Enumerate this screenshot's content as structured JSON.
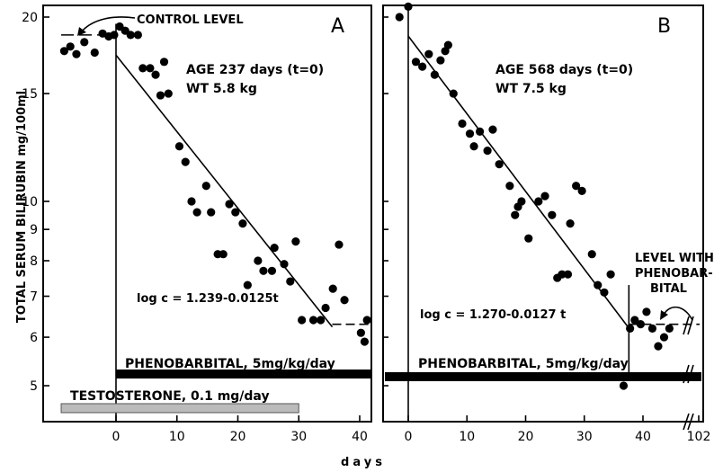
{
  "chart_data": [
    {
      "panel": "A",
      "type": "scatter",
      "ylabel": "TOTAL SERUM BILIRUBIN mg/100ml",
      "xlabel": "days",
      "y_scale": "log",
      "xlim": [
        -9,
        42
      ],
      "ylim": [
        4.5,
        20
      ],
      "x_ticks": [
        0,
        10,
        20,
        30,
        40
      ],
      "y_ticks": [
        5,
        6,
        7,
        8,
        9,
        10,
        15,
        20
      ],
      "points": [
        [
          -8.5,
          17.6
        ],
        [
          -7.5,
          17.9
        ],
        [
          -6.5,
          17.4
        ],
        [
          -5.2,
          18.2
        ],
        [
          -3.5,
          17.5
        ],
        [
          -2.2,
          18.8
        ],
        [
          -1.2,
          18.6
        ],
        [
          -0.3,
          18.7
        ],
        [
          0.6,
          19.3
        ],
        [
          1.5,
          19.0
        ],
        [
          2.4,
          18.7
        ],
        [
          3.6,
          18.7
        ],
        [
          4.4,
          16.5
        ],
        [
          5.6,
          16.5
        ],
        [
          6.5,
          16.1
        ],
        [
          7.3,
          14.9
        ],
        [
          7.9,
          16.9
        ],
        [
          8.6,
          15.0
        ],
        [
          10.4,
          12.3
        ],
        [
          11.4,
          11.6
        ],
        [
          12.4,
          10.0
        ],
        [
          13.3,
          9.6
        ],
        [
          14.8,
          10.6
        ],
        [
          15.6,
          9.6
        ],
        [
          16.7,
          8.2
        ],
        [
          17.6,
          8.2
        ],
        [
          18.6,
          9.9
        ],
        [
          19.6,
          9.6
        ],
        [
          20.8,
          9.2
        ],
        [
          21.6,
          7.3
        ],
        [
          23.3,
          8.0
        ],
        [
          24.2,
          7.7
        ],
        [
          25.6,
          7.7
        ],
        [
          26.0,
          8.4
        ],
        [
          27.6,
          7.9
        ],
        [
          28.6,
          7.4
        ],
        [
          29.5,
          8.6
        ],
        [
          30.5,
          6.4
        ],
        [
          32.4,
          6.4
        ],
        [
          33.6,
          6.4
        ],
        [
          34.4,
          6.7
        ],
        [
          35.6,
          7.2
        ],
        [
          36.6,
          8.5
        ],
        [
          37.5,
          6.9
        ],
        [
          40.2,
          6.1
        ],
        [
          40.8,
          5.9
        ],
        [
          41.2,
          6.4
        ]
      ],
      "fit_line": {
        "x": [
          0,
          35.5
        ],
        "y_log": [
          1.239,
          0.795
        ]
      },
      "control_level": {
        "y": 18.7,
        "x": [
          -9,
          0
        ]
      },
      "post_level": {
        "y": 6.3,
        "x": [
          35.5,
          42
        ]
      },
      "equation": "log c = 1.239-0.0125t",
      "panel_label": "A",
      "age": "AGE 237 days (t=0)",
      "weight": "WT 5.8 kg",
      "annotation": "CONTROL LEVEL",
      "treatments": [
        {
          "label": "PHENOBARBITAL, 5mg/kg/day",
          "x": [
            0,
            42
          ],
          "style": "solid"
        },
        {
          "label": "TESTOSTERONE, 0.1 mg/day",
          "x": [
            -9,
            30
          ],
          "style": "hatched"
        }
      ]
    },
    {
      "panel": "B",
      "type": "scatter",
      "xlabel": "days",
      "y_scale": "log",
      "xlim": [
        -1.5,
        102
      ],
      "ylim": [
        4.5,
        20
      ],
      "x_ticks": [
        0,
        10,
        20,
        30,
        40,
        102
      ],
      "points": [
        [
          -1.5,
          20.0
        ],
        [
          0.0,
          20.8
        ],
        [
          1.3,
          16.9
        ],
        [
          2.4,
          16.6
        ],
        [
          3.5,
          17.4
        ],
        [
          4.5,
          16.1
        ],
        [
          5.5,
          17.0
        ],
        [
          6.3,
          17.6
        ],
        [
          6.8,
          18.0
        ],
        [
          7.7,
          15.0
        ],
        [
          9.2,
          13.4
        ],
        [
          10.5,
          12.9
        ],
        [
          11.2,
          12.3
        ],
        [
          12.2,
          13.0
        ],
        [
          13.5,
          12.1
        ],
        [
          14.4,
          13.1
        ],
        [
          15.5,
          11.5
        ],
        [
          17.3,
          10.6
        ],
        [
          18.2,
          9.5
        ],
        [
          18.7,
          9.8
        ],
        [
          19.3,
          10.0
        ],
        [
          20.5,
          8.7
        ],
        [
          22.2,
          10.0
        ],
        [
          23.3,
          10.2
        ],
        [
          24.5,
          9.5
        ],
        [
          25.4,
          7.5
        ],
        [
          26.2,
          7.6
        ],
        [
          27.2,
          7.6
        ],
        [
          27.6,
          9.2
        ],
        [
          28.6,
          10.6
        ],
        [
          29.6,
          10.4
        ],
        [
          31.3,
          8.2
        ],
        [
          32.3,
          7.3
        ],
        [
          33.4,
          7.1
        ],
        [
          34.5,
          7.6
        ],
        [
          36.7,
          5.0
        ],
        [
          37.8,
          6.2
        ],
        [
          38.6,
          6.4
        ],
        [
          39.6,
          6.3
        ],
        [
          40.6,
          6.6
        ],
        [
          41.6,
          6.2
        ],
        [
          42.6,
          5.8
        ],
        [
          43.6,
          6.0
        ],
        [
          44.5,
          6.2
        ]
      ],
      "fit_line": {
        "x": [
          0,
          37.6
        ],
        "y_log": [
          1.27,
          0.793
        ]
      },
      "post_level": {
        "y": 6.3,
        "x": [
          37.6,
          102
        ]
      },
      "equation": "log c = 1.270-0.0127 t",
      "panel_label": "B",
      "age": "AGE 568 days (t=0)",
      "weight": "WT 7.5 kg",
      "annotation": "LEVEL WITH PHENOBARBITAL",
      "treatments": [
        {
          "label": "PHENOBARBITAL, 5mg/kg/day",
          "x": [
            -1.5,
            102
          ],
          "style": "solid"
        }
      ]
    }
  ]
}
